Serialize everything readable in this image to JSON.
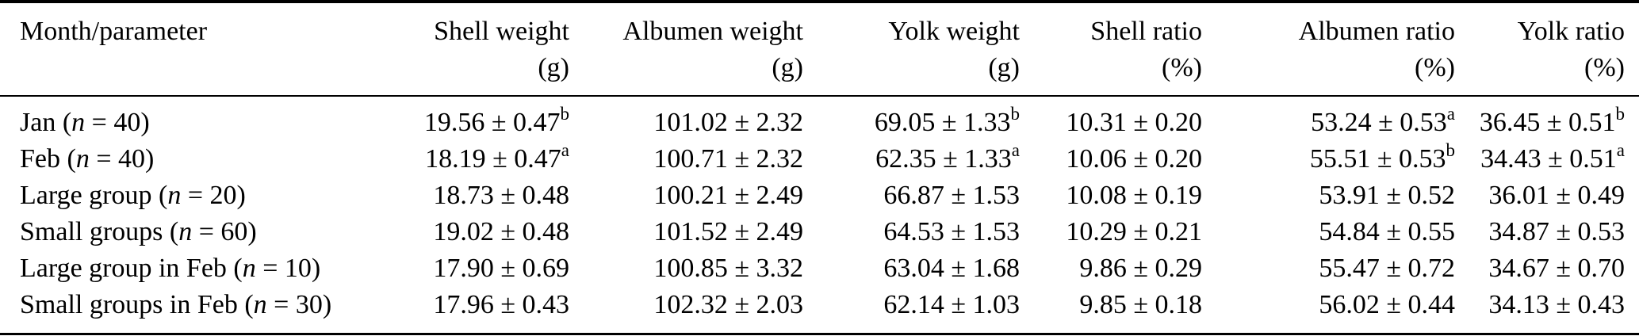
{
  "colors": {
    "background": "#ffffff",
    "text": "#000000",
    "rule": "#000000"
  },
  "chart_data": {
    "type": "table",
    "columns": [
      {
        "title": "Month/parameter",
        "unit": ""
      },
      {
        "title": "Shell weight",
        "unit": "(g)"
      },
      {
        "title": "Albumen weight",
        "unit": "(g)"
      },
      {
        "title": "Yolk weight",
        "unit": "(g)"
      },
      {
        "title": "Shell ratio",
        "unit": "(%)"
      },
      {
        "title": "Albumen ratio",
        "unit": "(%)"
      },
      {
        "title": "Yolk ratio",
        "unit": "(%)"
      }
    ],
    "rows": [
      {
        "label": {
          "pre": "Jan (",
          "var": "n",
          "post": " = 40)"
        },
        "cells": [
          {
            "value": "19.56 ± 0.47",
            "sup": "b"
          },
          {
            "value": "101.02 ± 2.32",
            "sup": ""
          },
          {
            "value": "69.05 ± 1.33",
            "sup": "b"
          },
          {
            "value": "10.31 ± 0.20",
            "sup": ""
          },
          {
            "value": "53.24 ± 0.53",
            "sup": "a"
          },
          {
            "value": "36.45 ± 0.51",
            "sup": "b"
          }
        ]
      },
      {
        "label": {
          "pre": "Feb (",
          "var": "n",
          "post": " = 40)"
        },
        "cells": [
          {
            "value": "18.19 ± 0.47",
            "sup": "a"
          },
          {
            "value": "100.71 ± 2.32",
            "sup": ""
          },
          {
            "value": "62.35 ± 1.33",
            "sup": "a"
          },
          {
            "value": "10.06 ± 0.20",
            "sup": ""
          },
          {
            "value": "55.51 ± 0.53",
            "sup": "b"
          },
          {
            "value": "34.43 ± 0.51",
            "sup": "a"
          }
        ]
      },
      {
        "label": {
          "pre": "Large group (",
          "var": "n",
          "post": " = 20)"
        },
        "cells": [
          {
            "value": "18.73 ± 0.48",
            "sup": ""
          },
          {
            "value": "100.21 ± 2.49",
            "sup": ""
          },
          {
            "value": "66.87 ± 1.53",
            "sup": ""
          },
          {
            "value": "10.08 ± 0.19",
            "sup": ""
          },
          {
            "value": "53.91 ± 0.52",
            "sup": ""
          },
          {
            "value": "36.01 ± 0.49",
            "sup": ""
          }
        ]
      },
      {
        "label": {
          "pre": "Small groups (",
          "var": "n",
          "post": " = 60)"
        },
        "cells": [
          {
            "value": "19.02 ± 0.48",
            "sup": ""
          },
          {
            "value": "101.52 ± 2.49",
            "sup": ""
          },
          {
            "value": "64.53 ± 1.53",
            "sup": ""
          },
          {
            "value": "10.29 ± 0.21",
            "sup": ""
          },
          {
            "value": "54.84 ± 0.55",
            "sup": ""
          },
          {
            "value": "34.87 ± 0.53",
            "sup": ""
          }
        ]
      },
      {
        "label": {
          "pre": "Large group in Feb (",
          "var": "n",
          "post": " = 10)"
        },
        "cells": [
          {
            "value": "17.90 ± 0.69",
            "sup": ""
          },
          {
            "value": "100.85 ± 3.32",
            "sup": ""
          },
          {
            "value": "63.04 ± 1.68",
            "sup": ""
          },
          {
            "value": "9.86 ± 0.29",
            "sup": ""
          },
          {
            "value": "55.47 ± 0.72",
            "sup": ""
          },
          {
            "value": "34.67 ± 0.70",
            "sup": ""
          }
        ]
      },
      {
        "label": {
          "pre": "Small groups in Feb (",
          "var": "n",
          "post": " = 30)"
        },
        "cells": [
          {
            "value": "17.96 ± 0.43",
            "sup": ""
          },
          {
            "value": "102.32 ± 2.03",
            "sup": ""
          },
          {
            "value": "62.14 ± 1.03",
            "sup": ""
          },
          {
            "value": "9.85 ± 0.18",
            "sup": ""
          },
          {
            "value": "56.02 ± 0.44",
            "sup": ""
          },
          {
            "value": "34.13 ± 0.43",
            "sup": ""
          }
        ]
      }
    ]
  }
}
